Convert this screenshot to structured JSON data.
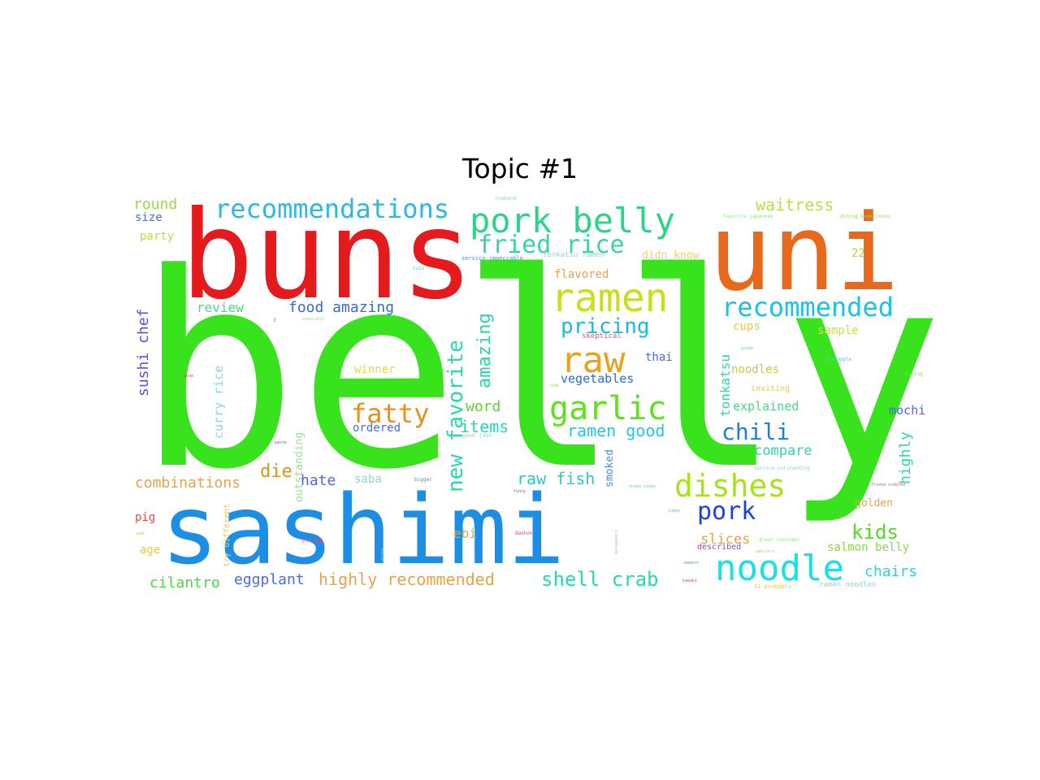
{
  "chart_data": {
    "type": "wordcloud",
    "title": "Topic #1",
    "words": [
      {
        "text": "belly",
        "color": "#38e21c"
      },
      {
        "text": "buns",
        "color": "#e41a1c"
      },
      {
        "text": "uni",
        "color": "#e8681c"
      },
      {
        "text": "sashimi",
        "color": "#1c8ee4"
      },
      {
        "text": "pork belly",
        "color": "#2bd48a"
      },
      {
        "text": "recommendations",
        "color": "#2fb8e0"
      },
      {
        "text": "fried rice",
        "color": "#3ad2a6"
      },
      {
        "text": "ramen",
        "color": "#c8df1c"
      },
      {
        "text": "raw",
        "color": "#e8a21c"
      },
      {
        "text": "recommended",
        "color": "#1cc2e0"
      },
      {
        "text": "garlic",
        "color": "#5ee21c"
      },
      {
        "text": "dishes",
        "color": "#a8e21c"
      },
      {
        "text": "noodle",
        "color": "#1ce0e8"
      },
      {
        "text": "fatty",
        "color": "#e8901c"
      },
      {
        "text": "new favorite",
        "color": "#2ad8b2"
      },
      {
        "text": "pricing",
        "color": "#1cb8e0"
      },
      {
        "text": "amazing",
        "color": "#24d8a8"
      },
      {
        "text": "chili",
        "color": "#1c7ee4"
      },
      {
        "text": "pork",
        "color": "#1c40e4"
      },
      {
        "text": "shell crab",
        "color": "#26d8b4"
      },
      {
        "text": "highly recommended",
        "color": "#e8a24a"
      },
      {
        "text": "food amazing",
        "color": "#3468e2"
      },
      {
        "text": "kids",
        "color": "#5ad82a"
      },
      {
        "text": "die",
        "color": "#e8901c"
      },
      {
        "text": "items",
        "color": "#2ad8b2"
      },
      {
        "text": "ramen good",
        "color": "#2ac2e0"
      },
      {
        "text": "raw fish",
        "color": "#2ac8d0"
      },
      {
        "text": "combinations",
        "color": "#e8a24a"
      },
      {
        "text": "sushi chef",
        "color": "#5a4ee4"
      },
      {
        "text": "waitress",
        "color": "#b8e04a"
      },
      {
        "text": "round",
        "color": "#9ad84a"
      },
      {
        "text": "size",
        "color": "#4a6ae4"
      },
      {
        "text": "party",
        "color": "#b2e04a"
      },
      {
        "text": "review",
        "color": "#4ad88a"
      },
      {
        "text": "tonkatsu",
        "color": "#2ad8b2"
      },
      {
        "text": "vegetables",
        "color": "#2a6ae4"
      },
      {
        "text": "word",
        "color": "#5ad82a"
      },
      {
        "text": "ordered",
        "color": "#4a6ae4"
      },
      {
        "text": "compare",
        "color": "#2ad8b2"
      },
      {
        "text": "explained",
        "color": "#4ad88a"
      },
      {
        "text": "highly",
        "color": "#2ad8b2"
      },
      {
        "text": "mochi",
        "color": "#4a6ae4"
      },
      {
        "text": "cilantro",
        "color": "#4ad84a"
      },
      {
        "text": "eggplant",
        "color": "#4a6ae4"
      },
      {
        "text": "chairs",
        "color": "#2ad8d0"
      },
      {
        "text": "salmon belly",
        "color": "#8ad84a"
      },
      {
        "text": "slices",
        "color": "#e8a24a"
      },
      {
        "text": "noodles",
        "color": "#c8c84a"
      },
      {
        "text": "hate",
        "color": "#4a6ae4"
      },
      {
        "text": "saba",
        "color": "#8ad8d0"
      },
      {
        "text": "ebi",
        "color": "#e8a24a"
      },
      {
        "text": "age",
        "color": "#e8c84a"
      },
      {
        "text": "pig",
        "color": "#e84a4a"
      },
      {
        "text": "curry rice",
        "color": "#8ad8d0"
      },
      {
        "text": "outstanding",
        "color": "#8ae88a"
      },
      {
        "text": "smoked",
        "color": "#4a8ae4"
      },
      {
        "text": "thai",
        "color": "#4a6ae4"
      },
      {
        "text": "cups",
        "color": "#e8c84a"
      },
      {
        "text": "sample",
        "color": "#c8e04a"
      },
      {
        "text": "flavored",
        "color": "#e8a24a"
      },
      {
        "text": "didn know",
        "color": "#e8d84a"
      },
      {
        "text": "22",
        "color": "#c8c84a"
      },
      {
        "text": "golden",
        "color": "#e8a24a"
      },
      {
        "text": "winner",
        "color": "#e8d84a"
      },
      {
        "text": "inviting",
        "color": "#e8c84a"
      },
      {
        "text": "skeptical",
        "color": "#e84a8a"
      },
      {
        "text": "try different",
        "color": "#e8c84a"
      },
      {
        "text": "described",
        "color": "#8a4ae4"
      },
      {
        "text": "tonkatsu ramen",
        "color": "#8ad8d0"
      },
      {
        "text": "ramen noodles",
        "color": "#8ad8d0"
      },
      {
        "text": "service impeccable",
        "color": "#4a8ae4"
      },
      {
        "text": "favorite japanese",
        "color": "#8ae88a"
      },
      {
        "text": "dining experience",
        "color": "#8ae84a"
      },
      {
        "text": "husband",
        "color": "#8ad8d0"
      },
      {
        "text": "service outstanding",
        "color": "#8ad8d0"
      },
      {
        "text": "great customer",
        "color": "#8ae88a"
      },
      {
        "text": "good just",
        "color": "#8ad8d0"
      },
      {
        "text": "friend ordered",
        "color": "#e84a8a"
      },
      {
        "text": "11 probably",
        "color": "#e8c84a"
      },
      {
        "text": "pineapple",
        "color": "#4ad8d0"
      },
      {
        "text": "living",
        "color": "#8ae84a"
      },
      {
        "text": "playing",
        "color": "#e84a8a"
      },
      {
        "text": "dashon",
        "color": "#e84a4a"
      },
      {
        "text": "bigger",
        "color": "#4a8ae4"
      },
      {
        "text": "funny",
        "color": "#e84a4a"
      },
      {
        "text": "paste",
        "color": "#4a6ae4"
      },
      {
        "text": "boba",
        "color": "#8ad8d0"
      },
      {
        "text": "available",
        "color": "#8ae88a"
      },
      {
        "text": "management",
        "color": "#8ad8d0"
      },
      {
        "text": "gone",
        "color": "#e84a4a"
      },
      {
        "text": "aloha",
        "color": "#8ad8d0"
      },
      {
        "text": "kawaki",
        "color": "#e84a4a"
      },
      {
        "text": "owners",
        "color": "#4a8ae4"
      },
      {
        "text": "yakitori",
        "color": "#8ae84a"
      },
      {
        "text": "yummy",
        "color": "#4ad8d0"
      },
      {
        "text": "ocean views",
        "color": "#4ad8d0"
      },
      {
        "text": "pad",
        "color": "#8ae84a"
      },
      {
        "text": "grade",
        "color": "#4ad8d0"
      },
      {
        "text": "side",
        "color": "#8ae84a"
      },
      {
        "text": "3",
        "color": "#4a8ae4"
      },
      {
        "text": "2",
        "color": "#e8c84a"
      }
    ]
  }
}
